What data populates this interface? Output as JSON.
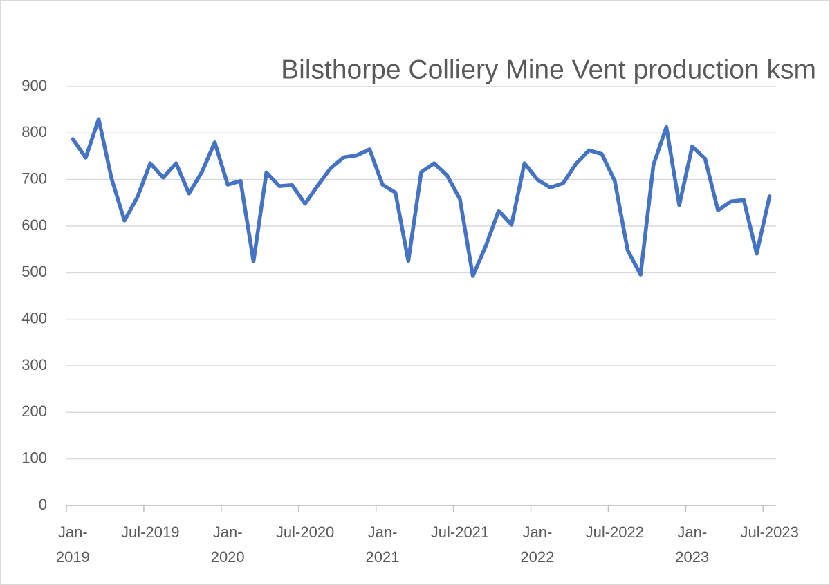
{
  "chart_data": {
    "type": "line",
    "title": "Bilsthorpe Colliery Mine Vent production ksm",
    "categories": [
      "Jan-2019",
      null,
      null,
      null,
      null,
      null,
      "Jul-2019",
      null,
      null,
      null,
      null,
      null,
      "Jan-2020",
      null,
      null,
      null,
      null,
      null,
      "Jul-2020",
      null,
      null,
      null,
      null,
      null,
      "Jan-2021",
      null,
      null,
      null,
      null,
      null,
      "Jul-2021",
      null,
      null,
      null,
      null,
      null,
      "Jan-2022",
      null,
      null,
      null,
      null,
      null,
      "Jul-2022",
      null,
      null,
      null,
      null,
      null,
      "Jan-2023",
      null,
      null,
      null,
      null,
      null,
      "Jul-2023"
    ],
    "values": [
      787,
      747,
      830,
      702,
      612,
      662,
      735,
      704,
      735,
      670,
      716,
      780,
      689,
      697,
      524,
      715,
      686,
      688,
      648,
      688,
      725,
      748,
      752,
      765,
      689,
      672,
      525,
      716,
      735,
      709,
      658,
      493,
      557,
      633,
      603,
      735,
      700,
      683,
      692,
      734,
      763,
      755,
      697,
      548,
      496,
      732,
      813,
      645,
      771,
      745,
      634,
      653,
      656,
      541,
      664
    ],
    "color": "#4472c4",
    "ylim": [
      0,
      900
    ],
    "yticks": [
      0,
      100,
      200,
      300,
      400,
      500,
      600,
      700,
      800,
      900
    ],
    "grid": true
  }
}
